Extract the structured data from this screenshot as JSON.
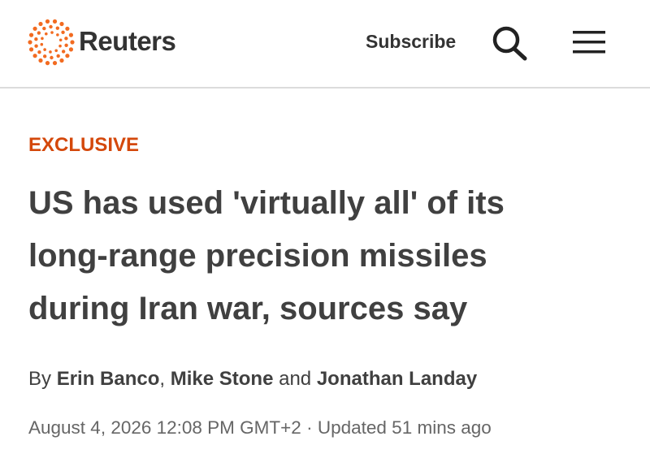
{
  "header": {
    "brand": "Reuters",
    "subscribe": "Subscribe"
  },
  "article": {
    "label": "EXCLUSIVE",
    "headline": "US has used 'virtually all' of its long-range precision missiles during Iran war, sources say",
    "byline": {
      "prefix": "By",
      "authors": [
        "Erin Banco",
        "Mike Stone",
        "Jonathan Landay"
      ],
      "separator": ",",
      "conjunction": "and"
    },
    "dateline": {
      "published": "August 4, 2026 12:08 PM GMT+2",
      "separator": "·",
      "updated": "Updated 51 mins ago"
    }
  }
}
